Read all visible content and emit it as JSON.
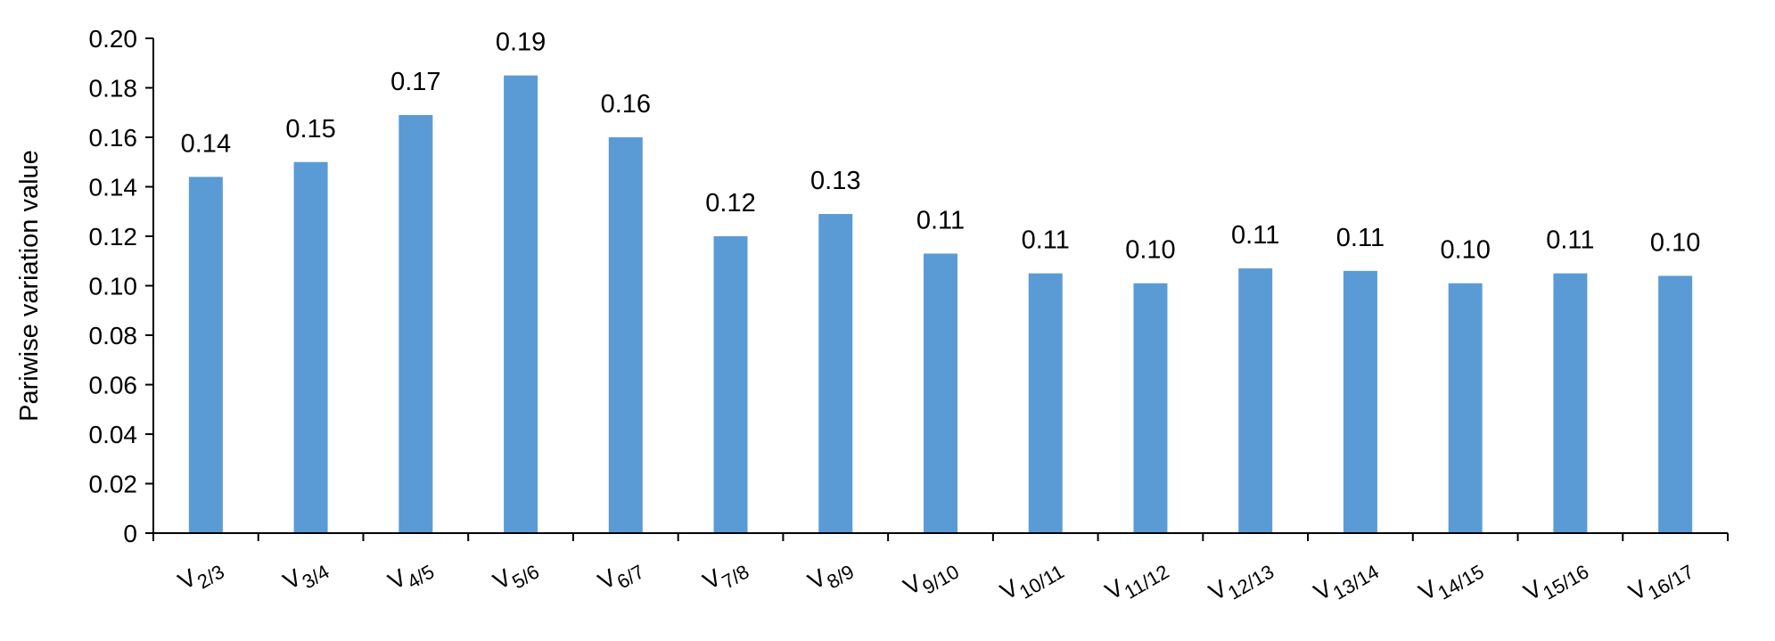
{
  "chart_data": {
    "type": "bar",
    "title": "",
    "xlabel": "",
    "ylabel": "Pariwise variation value",
    "ylim": [
      0,
      0.2
    ],
    "yticks": [
      "0",
      "0.02",
      "0.04",
      "0.06",
      "0.08",
      "0.10",
      "0.12",
      "0.14",
      "0.16",
      "0.18",
      "0.20"
    ],
    "ytick_values": [
      0,
      0.02,
      0.04,
      0.06,
      0.08,
      0.1,
      0.12,
      0.14,
      0.16,
      0.18,
      0.2
    ],
    "grid": false,
    "categories": [
      {
        "base": "V",
        "sub": "2/3"
      },
      {
        "base": "V",
        "sub": "3/4"
      },
      {
        "base": "V",
        "sub": "4/5"
      },
      {
        "base": "V",
        "sub": "5/6"
      },
      {
        "base": "V",
        "sub": "6/7"
      },
      {
        "base": "V",
        "sub": "7/8"
      },
      {
        "base": "V",
        "sub": "8/9"
      },
      {
        "base": "V",
        "sub": "9/10"
      },
      {
        "base": "V",
        "sub": "10/11"
      },
      {
        "base": "V",
        "sub": "11/12"
      },
      {
        "base": "V",
        "sub": "12/13"
      },
      {
        "base": "V",
        "sub": "13/14"
      },
      {
        "base": "V",
        "sub": "14/15"
      },
      {
        "base": "V",
        "sub": "15/16"
      },
      {
        "base": "V",
        "sub": "16/17"
      }
    ],
    "values": [
      0.144,
      0.15,
      0.169,
      0.185,
      0.16,
      0.12,
      0.129,
      0.113,
      0.105,
      0.101,
      0.107,
      0.106,
      0.101,
      0.105,
      0.104
    ],
    "data_labels": [
      "0.14",
      "0.15",
      "0.17",
      "0.19",
      "0.16",
      "0.12",
      "0.13",
      "0.11",
      "0.11",
      "0.10",
      "0.11",
      "0.11",
      "0.10",
      "0.11",
      "0.10"
    ],
    "bar_color": "#5b9bd5"
  }
}
